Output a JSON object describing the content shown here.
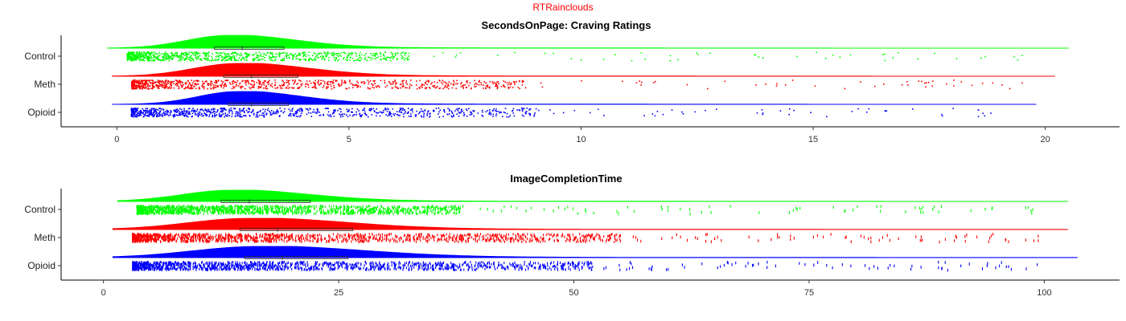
{
  "supertitle": "RTRainclouds",
  "chart_data": [
    {
      "type": "raincloud",
      "title": "SecondsOnPage: Craving Ratings",
      "xlabel": "",
      "ylabel": "",
      "xlim": [
        -1.2,
        21.6
      ],
      "xticks": [
        0,
        5,
        10,
        15,
        20
      ],
      "categories": [
        "Control",
        "Meth",
        "Opioid"
      ],
      "series": [
        {
          "name": "Control",
          "color": "#00ff00",
          "range": [
            -0.2,
            20.5
          ],
          "quartiles": [
            2.1,
            2.7,
            3.6
          ],
          "mode": 2.4,
          "spread": 0.9,
          "rain_dense_max": 6.3,
          "rain_max": 19.8
        },
        {
          "name": "Meth",
          "color": "#ff0000",
          "range": [
            -0.1,
            20.2
          ],
          "quartiles": [
            2.3,
            2.9,
            3.9
          ],
          "mode": 2.6,
          "spread": 0.95,
          "rain_dense_max": 8.8,
          "rain_max": 19.5
        },
        {
          "name": "Opioid",
          "color": "#0000ff",
          "range": [
            -0.1,
            19.8
          ],
          "quartiles": [
            2.4,
            2.9,
            3.7
          ],
          "mode": 2.6,
          "spread": 0.85,
          "rain_dense_max": 9.1,
          "rain_max": 19.2
        }
      ]
    },
    {
      "type": "raincloud",
      "title": "ImageCompletionTime",
      "xlabel": "",
      "ylabel": "",
      "xlim": [
        -4.5,
        108
      ],
      "xticks": [
        0,
        25,
        50,
        75,
        100
      ],
      "categories": [
        "Control",
        "Meth",
        "Opioid"
      ],
      "series": [
        {
          "name": "Control",
          "color": "#00ff00",
          "range": [
            1.5,
            102.5
          ],
          "quartiles": [
            12.5,
            15.5,
            22.0
          ],
          "mode": 13.5,
          "spread": 5.2,
          "rain_dense_max": 38,
          "rain_max": 99
        },
        {
          "name": "Meth",
          "color": "#ff0000",
          "range": [
            1.0,
            102.5
          ],
          "quartiles": [
            14.5,
            18.5,
            26.5
          ],
          "mode": 15.5,
          "spread": 6.5,
          "rain_dense_max": 55,
          "rain_max": 99.5
        },
        {
          "name": "Opioid",
          "color": "#0000ff",
          "range": [
            1.0,
            103.5
          ],
          "quartiles": [
            15.0,
            19.0,
            26.0
          ],
          "mode": 16.5,
          "spread": 7.0,
          "rain_dense_max": 52,
          "rain_max": 99.5
        }
      ]
    }
  ]
}
